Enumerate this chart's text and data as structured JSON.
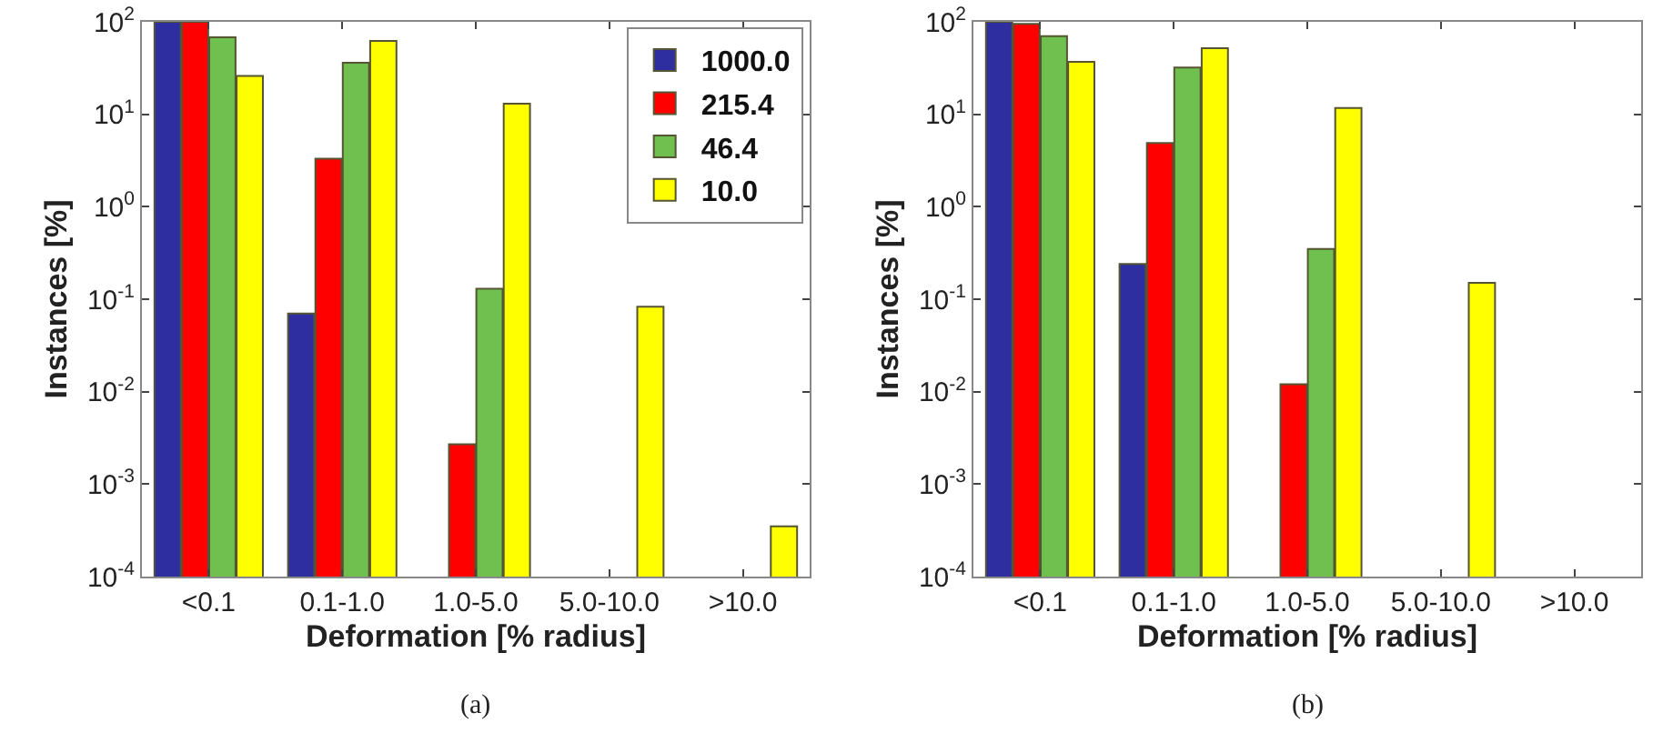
{
  "chart_data": [
    {
      "type": "bar",
      "xlabel": "Deformation [% radius]",
      "ylabel": "Instances [%]",
      "annotations": [
        "(a)"
      ],
      "categories": [
        "<0.1",
        "0.1-1.0",
        "1.0-5.0",
        "5.0-10.0",
        ">10.0"
      ],
      "log": "y",
      "grid": false,
      "legend": "top right",
      "ylim": [
        0.0001,
        100
      ],
      "yticks": [
        {
          "value": 0.0001,
          "label": "10$^{-4}$"
        },
        {
          "value": 0.001,
          "label": "10$^{-3}$"
        },
        {
          "value": 0.01,
          "label": "10$^{-2}$"
        },
        {
          "value": 0.1,
          "label": "10$^{-1}$"
        },
        {
          "value": 1,
          "label": "10$^{0}$"
        },
        {
          "value": 10,
          "label": "10$^{1}$"
        },
        {
          "value": 100,
          "label": "10$^{2}$"
        }
      ],
      "series": [
        {
          "name": "1000.0",
          "color": "#2e2ea0",
          "values": [
            100,
            0.07,
            null,
            null,
            null
          ]
        },
        {
          "name": "215.4",
          "color": "#ff0000",
          "values": [
            100,
            3.3,
            0.0027,
            null,
            null
          ]
        },
        {
          "name": "46.4",
          "color": "#70c050",
          "values": [
            68,
            36,
            0.13,
            null,
            null
          ]
        },
        {
          "name": "10.0",
          "color": "#ffff00",
          "values": [
            26,
            62,
            13,
            0.083,
            0.00035
          ]
        }
      ]
    },
    {
      "type": "bar",
      "xlabel": "Deformation [% radius]",
      "ylabel": "Instances [%]",
      "annotations": [
        "(b)"
      ],
      "categories": [
        "<0.1",
        "0.1-1.0",
        "1.0-5.0",
        "5.0-10.0",
        ">10.0"
      ],
      "log": "y",
      "grid": false,
      "ylim": [
        0.0001,
        100
      ],
      "yticks": [
        {
          "value": 0.0001,
          "label": "10$^{-4}$"
        },
        {
          "value": 0.001,
          "label": "10$^{-3}$"
        },
        {
          "value": 0.01,
          "label": "10$^{-2}$"
        },
        {
          "value": 0.1,
          "label": "10$^{-1}$"
        },
        {
          "value": 1,
          "label": "10$^{0}$"
        },
        {
          "value": 10,
          "label": "10$^{1}$"
        },
        {
          "value": 100,
          "label": "10$^{2}$"
        }
      ],
      "series": [
        {
          "color": "#2e2ea0",
          "values": [
            100,
            0.24,
            null,
            null,
            null
          ]
        },
        {
          "color": "#ff0000",
          "values": [
            95,
            4.9,
            0.012,
            null,
            null
          ]
        },
        {
          "color": "#70c050",
          "values": [
            70,
            32,
            0.35,
            null,
            null
          ]
        },
        {
          "color": "#ffff00",
          "values": [
            37,
            52,
            11.7,
            0.15,
            null
          ]
        }
      ]
    }
  ]
}
